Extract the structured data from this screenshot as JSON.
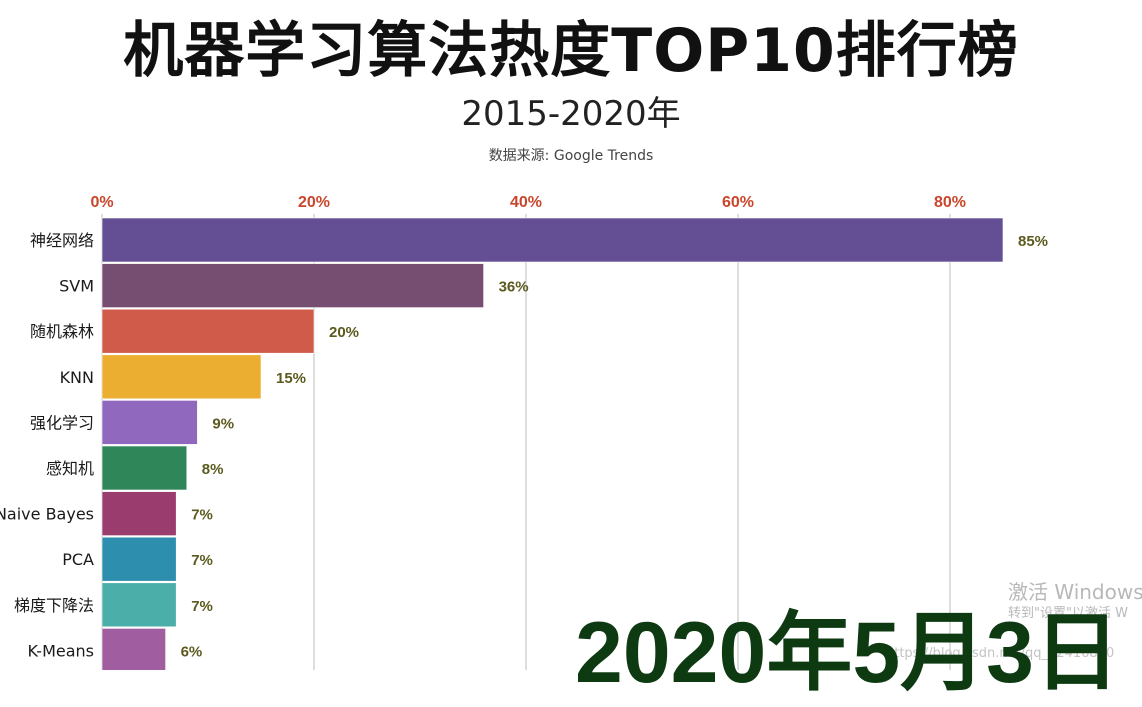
{
  "header": {
    "title": "机器学习算法热度TOP10排行榜",
    "subtitle": "2015-2020年",
    "source": "数据来源: Google Trends"
  },
  "date_label": "2020年5月3日",
  "watermark": {
    "line1": "激活 Windows",
    "line2": "转到\"设置\"以激活 W",
    "url": "https://blog.csdn.net/qq_42416820"
  },
  "colors": {
    "tick_label": "#c8462b",
    "value_label": "#5c5a1f",
    "gridline": "#c8c8c8",
    "date": "#0e3a12"
  },
  "chart_data": {
    "type": "bar",
    "orientation": "horizontal",
    "x_ticks": [
      "0%",
      "20%",
      "40%",
      "60%",
      "80%"
    ],
    "x_tick_values": [
      0,
      20,
      40,
      60,
      80
    ],
    "xlim": [
      0,
      85
    ],
    "grid": true,
    "categories": [
      "神经网络",
      "SVM",
      "随机森林",
      "KNN",
      "强化学习",
      "感知机",
      "Naive Bayes",
      "PCA",
      "梯度下降法",
      "K-Means"
    ],
    "values": [
      85,
      36,
      20,
      15,
      9,
      8,
      7,
      7,
      7,
      6
    ],
    "value_labels": [
      "85%",
      "36%",
      "20%",
      "15%",
      "9%",
      "8%",
      "7%",
      "7%",
      "7%",
      "6%"
    ],
    "bar_colors": [
      "#644f94",
      "#764e72",
      "#d05b4a",
      "#ebae31",
      "#9068bd",
      "#2f8759",
      "#9a3d6e",
      "#2d8ead",
      "#4caea9",
      "#a05da0"
    ]
  }
}
